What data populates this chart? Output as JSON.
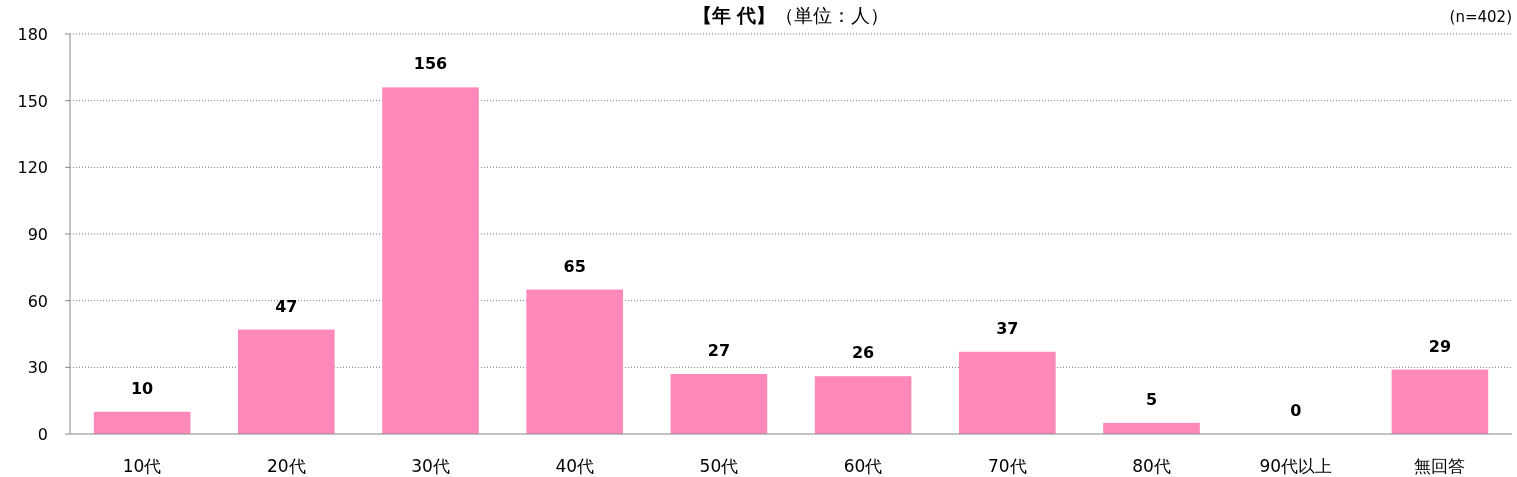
{
  "chart_data": {
    "type": "bar",
    "title": "**【年 代】**（単位：人）",
    "categories": [
      "10代",
      "20代",
      "30代",
      "40代",
      "50代",
      "60代",
      "70代",
      "80代",
      "90代以上",
      "無回答"
    ],
    "values": [
      10,
      47,
      156,
      65,
      27,
      26,
      37,
      5,
      0,
      29
    ],
    "color": "#ff88bb",
    "ylim": [
      0,
      180
    ],
    "yticks": [
      0,
      30,
      60,
      90,
      120,
      150,
      180
    ],
    "grid": "y",
    "data_labels": true,
    "annotations": [
      "(n=402)"
    ]
  }
}
